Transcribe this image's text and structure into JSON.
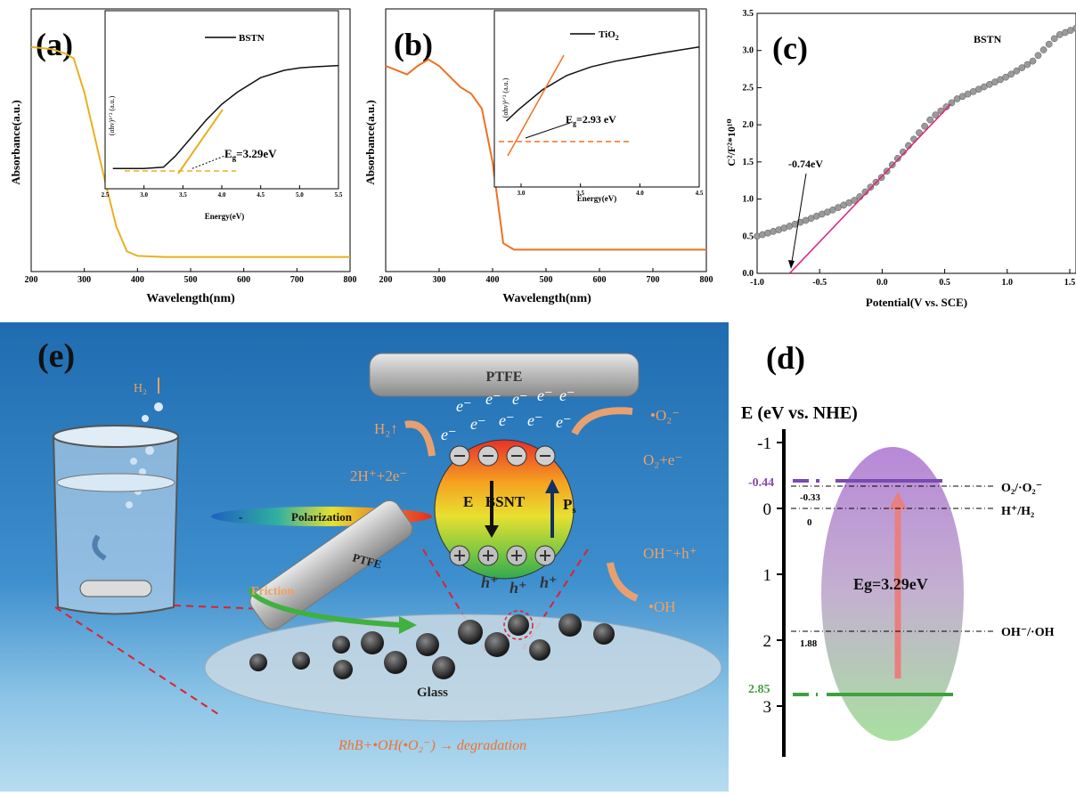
{
  "panels": {
    "a": {
      "label": "(a)",
      "ylabel": "Absorbance(a.u.)",
      "xlabel": "Wavelength(nm)",
      "xticks": [
        "200",
        "300",
        "400",
        "500",
        "600",
        "700",
        "800"
      ],
      "inset": {
        "legend": "BSTN",
        "ylabel": "(αhv)¹ᐟ² (a.u.)",
        "xlabel": "Energy(eV)",
        "xticks": [
          "2.5",
          "3.0",
          "3.5",
          "4.0",
          "4.5",
          "5.0",
          "5.5"
        ],
        "annotation": "E",
        "annotation_sub": "g",
        "annotation_val": "=3.29eV"
      }
    },
    "b": {
      "label": "(b)",
      "ylabel": "Absorbance(a.u.)",
      "xlabel": "Wavelength(nm)",
      "xticks": [
        "200",
        "300",
        "400",
        "500",
        "600",
        "700",
        "800"
      ],
      "inset": {
        "legend_main": "TiO",
        "legend_sub": "2",
        "ylabel": "(αhv)¹ᐟ² (a.u.)",
        "xlabel": "Energy(eV)",
        "xticks": [
          "3.0",
          "3.5",
          "4.0",
          "4.5"
        ],
        "annotation": "E",
        "annotation_sub": "g",
        "annotation_val": "=2.93 eV"
      }
    },
    "c": {
      "label": "(c)",
      "legend": "BSTN",
      "ylabel": "C²/F²*10¹⁰",
      "xlabel": "Potential(V vs. SCE)",
      "xticks": [
        "-1.0",
        "-0.5",
        "0.0",
        "0.5",
        "1.0",
        "1.5"
      ],
      "yticks": [
        "0.0",
        "0.5",
        "1.0",
        "1.5",
        "2.0",
        "2.5",
        "3.0",
        "3.5"
      ],
      "annotation": "-0.74eV"
    },
    "d": {
      "label": "(d)",
      "axis_title": "E (eV vs. NHE)",
      "yticks": [
        "-1",
        "0",
        "1",
        "2",
        "3"
      ],
      "cb": "-0.44",
      "vb": "2.85",
      "eg": "Eg=3.29eV",
      "o2_value": "-0.33",
      "h_value": "0",
      "oh_value": "1.88",
      "o2_label": "O₂/·O₂⁻",
      "h_label": "H⁺/H₂",
      "oh_label": "OH⁻/·OH"
    },
    "e": {
      "label": "(e)",
      "ptfe_top": "PTFE",
      "ptfe_rod": "PTFE",
      "h2_top": "H₂",
      "h2_left": "H₂↑",
      "h_eq": "2H⁺+2e⁻",
      "o2_radical": "•O₂⁻",
      "o2_eq": "O₂+e⁻",
      "oh_eq": "OH⁻+h⁺",
      "oh_radical": "•OH",
      "e_field": "E",
      "bsnt": "BSNT",
      "ps": "P",
      "ps_sub": "s",
      "polarization": "Polarization",
      "friction": "Friction",
      "glass": "Glass",
      "degradation": "RhB+•OH(•O₂⁻) → degradation",
      "electron": "e⁻",
      "hole": "h⁺"
    }
  },
  "chart_data": [
    {
      "type": "line",
      "id": "a-main",
      "xlabel": "Wavelength(nm)",
      "ylabel": "Absorbance(a.u.)",
      "xlim": [
        200,
        800
      ],
      "ylim": [
        0,
        1
      ],
      "x": [
        200,
        240,
        265,
        280,
        300,
        320,
        340,
        360,
        380,
        400,
        450,
        500,
        600,
        700,
        800
      ],
      "y": [
        0.95,
        0.94,
        0.92,
        0.9,
        0.75,
        0.55,
        0.35,
        0.16,
        0.05,
        0.03,
        0.025,
        0.025,
        0.025,
        0.025,
        0.025
      ],
      "color": "#e8b020"
    },
    {
      "type": "line",
      "id": "a-inset",
      "xlabel": "Energy(eV)",
      "xlim": [
        2.5,
        5.5
      ],
      "ylim": [
        0,
        1
      ],
      "x": [
        2.6,
        3.0,
        3.25,
        3.4,
        3.6,
        3.8,
        4.0,
        4.2,
        4.5,
        4.8,
        5.0,
        5.2,
        5.5
      ],
      "y": [
        0.05,
        0.05,
        0.06,
        0.15,
        0.3,
        0.45,
        0.58,
        0.68,
        0.8,
        0.86,
        0.88,
        0.89,
        0.9
      ],
      "color": "#111111",
      "bandgap_eV": 3.29
    },
    {
      "type": "line",
      "id": "b-main",
      "xlabel": "Wavelength(nm)",
      "ylabel": "Absorbance(a.u.)",
      "xlim": [
        200,
        800
      ],
      "ylim": [
        0,
        1
      ],
      "x": [
        200,
        220,
        240,
        260,
        280,
        300,
        320,
        340,
        360,
        380,
        400,
        420,
        440,
        500,
        600,
        700,
        800
      ],
      "y": [
        0.9,
        0.88,
        0.86,
        0.9,
        0.93,
        0.9,
        0.85,
        0.8,
        0.77,
        0.7,
        0.45,
        0.07,
        0.04,
        0.04,
        0.04,
        0.04,
        0.04
      ],
      "color": "#f07020"
    },
    {
      "type": "line",
      "id": "b-inset",
      "xlabel": "Energy(eV)",
      "xlim": [
        2.8,
        4.5
      ],
      "ylim": [
        0,
        1
      ],
      "x": [
        2.9,
        3.0,
        3.2,
        3.4,
        3.6,
        3.8,
        4.0,
        4.2,
        4.5
      ],
      "y": [
        0.4,
        0.48,
        0.62,
        0.72,
        0.78,
        0.82,
        0.85,
        0.88,
        0.92
      ],
      "color": "#111111",
      "bandgap_eV": 2.93
    },
    {
      "type": "scatter",
      "id": "c",
      "xlabel": "Potential(V vs. SCE)",
      "ylabel": "C²/F²*10¹⁰",
      "xlim": [
        -1.0,
        1.55
      ],
      "ylim": [
        0,
        3.5
      ],
      "x": [
        -1.0,
        -0.8,
        -0.6,
        -0.4,
        -0.2,
        0.0,
        0.2,
        0.4,
        0.6,
        0.8,
        1.0,
        1.2,
        1.4,
        1.55
      ],
      "y": [
        0.5,
        0.6,
        0.72,
        0.85,
        1.0,
        1.3,
        1.7,
        2.1,
        2.35,
        2.5,
        2.65,
        2.85,
        3.2,
        3.3
      ],
      "series": [
        {
          "name": "BSTN"
        }
      ],
      "fit_line": {
        "x0": -0.74,
        "y0": 0.0,
        "x1": 0.55,
        "y1": 2.28
      },
      "flatband_potential": -0.74
    }
  ]
}
